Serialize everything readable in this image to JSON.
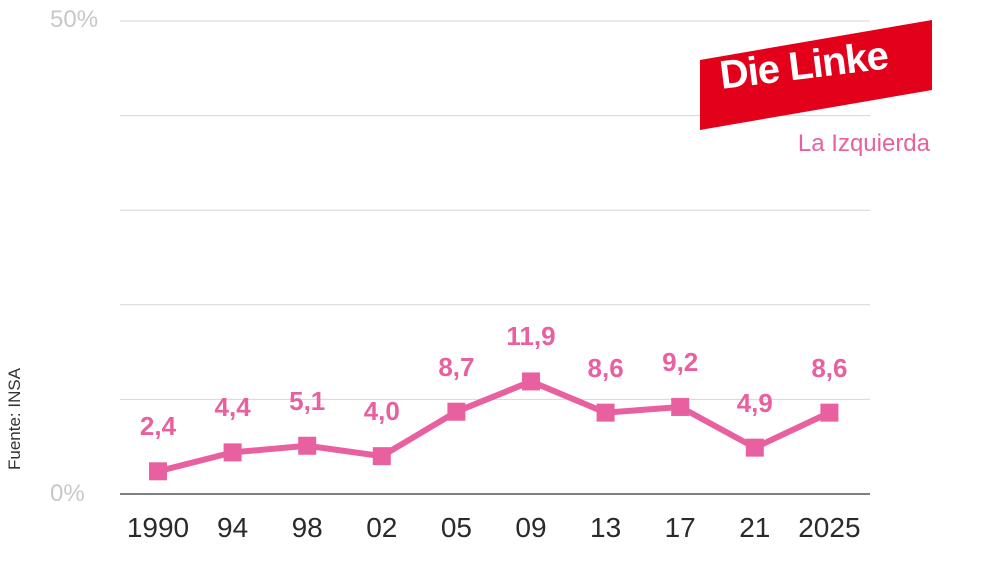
{
  "chart_data": {
    "type": "line",
    "categories": [
      "1990",
      "94",
      "98",
      "02",
      "05",
      "09",
      "13",
      "17",
      "21",
      "2025"
    ],
    "series": [
      {
        "values": [
          2.4,
          4.4,
          5.1,
          4.0,
          8.7,
          11.9,
          8.6,
          9.2,
          4.9,
          8.6
        ],
        "labels": [
          "2,4",
          "4,4",
          "5,1",
          "4,0",
          "8,7",
          "11,9",
          "8,6",
          "9,2",
          "4,9",
          "8,6"
        ],
        "color": "#e8609f"
      }
    ],
    "y_tick_labels": {
      "min": "0%",
      "max": "50%"
    },
    "ylim": [
      0,
      50
    ],
    "grid": true,
    "source": "Fuente: INSA",
    "party_logo": {
      "text": "Die Linke",
      "color": "#e2001a"
    },
    "subtitle": "La Izquierda",
    "accent_color": "#e8609f"
  }
}
